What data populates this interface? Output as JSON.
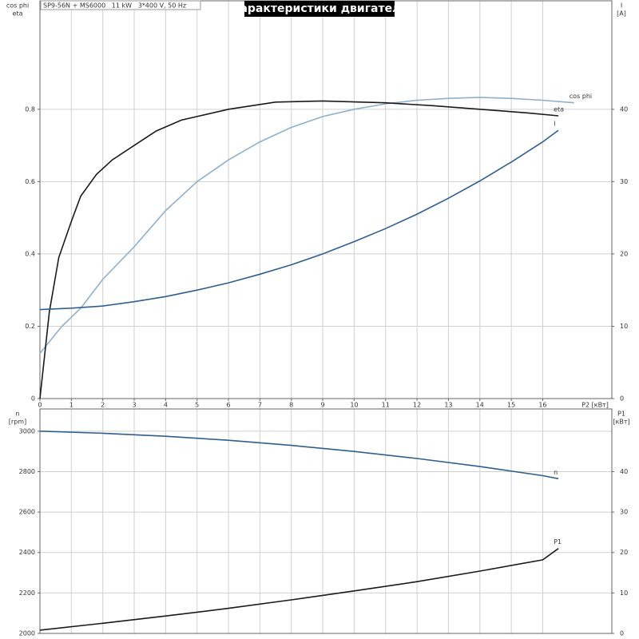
{
  "chart_data": [
    {
      "type": "line",
      "title": "Характеристики двигателя",
      "subtitle": "SP9-56N + MS6000   11 kW   3*400 V, 50 Hz",
      "x_label": "P2 [кВт]",
      "y_label": [
        "cos phi",
        "eta"
      ],
      "y2_label": [
        "I",
        "[A]"
      ],
      "xlim": [
        0,
        18.2
      ],
      "xticks": [
        0,
        1,
        2,
        3,
        4,
        5,
        6,
        7,
        8,
        9,
        10,
        11,
        12,
        13,
        14,
        15,
        16
      ],
      "ylim": [
        0,
        1.1
      ],
      "yticks": [
        0,
        0.2,
        0.4,
        0.6,
        0.8
      ],
      "y2lim": [
        0,
        55
      ],
      "y2ticks": [
        0,
        10,
        20,
        30,
        40
      ],
      "grid": true,
      "series": [
        {
          "name": "cos phi",
          "color": "#8fb0cc",
          "x": [
            0,
            0.7,
            1.3,
            2,
            3,
            4,
            5,
            6,
            7,
            8,
            9,
            10,
            11,
            12,
            13,
            14,
            15,
            16,
            17
          ],
          "values": [
            0.125,
            0.2,
            0.25,
            0.33,
            0.42,
            0.52,
            0.6,
            0.66,
            0.71,
            0.75,
            0.78,
            0.8,
            0.815,
            0.825,
            0.83,
            0.833,
            0.83,
            0.825,
            0.818
          ]
        },
        {
          "name": "eta",
          "color": "#1a1a1a",
          "x": [
            0,
            0.3,
            0.6,
            1,
            1.3,
            1.8,
            2.3,
            3,
            3.7,
            4.5,
            6,
            7.5,
            9,
            11,
            12.5,
            14,
            15.5,
            16.5
          ],
          "values": [
            0,
            0.24,
            0.39,
            0.49,
            0.56,
            0.62,
            0.66,
            0.7,
            0.74,
            0.77,
            0.8,
            0.82,
            0.823,
            0.818,
            0.81,
            0.8,
            0.79,
            0.782
          ]
        },
        {
          "name": "I",
          "color": "#2f5f8f",
          "axis": "y2",
          "x": [
            0,
            1,
            2,
            3,
            4,
            5,
            6,
            7,
            8,
            9,
            10,
            11,
            12,
            13,
            14,
            15,
            16,
            16.5
          ],
          "values": [
            12.3,
            12.5,
            12.8,
            13.4,
            14.1,
            15,
            16,
            17.2,
            18.5,
            20,
            21.7,
            23.5,
            25.5,
            27.7,
            30.1,
            32.7,
            35.5,
            37.1
          ]
        }
      ]
    },
    {
      "type": "line",
      "y_label": [
        "n",
        "[rpm]"
      ],
      "y2_label": [
        "P1",
        "[кВт]"
      ],
      "xlim": [
        0,
        18.2
      ],
      "ylim": [
        2000,
        3110
      ],
      "yticks": [
        2000,
        2200,
        2400,
        2600,
        2800,
        3000
      ],
      "y2lim": [
        0,
        55.5
      ],
      "y2ticks": [
        0,
        10,
        20,
        30,
        40
      ],
      "grid": true,
      "series": [
        {
          "name": "n",
          "color": "#2f5f8f",
          "x": [
            0,
            2,
            4,
            6,
            8,
            10,
            12,
            14,
            16,
            16.5
          ],
          "values": [
            3000,
            2990,
            2975,
            2955,
            2930,
            2900,
            2865,
            2825,
            2780,
            2765
          ]
        },
        {
          "name": "P1",
          "color": "#1a1a1a",
          "axis": "y2",
          "x": [
            0,
            2,
            4,
            6,
            8,
            10,
            12,
            14,
            16,
            16.5
          ],
          "values": [
            0.8,
            2.5,
            4.3,
            6.2,
            8.3,
            10.5,
            12.8,
            15.4,
            18.2,
            21
          ]
        }
      ]
    }
  ]
}
